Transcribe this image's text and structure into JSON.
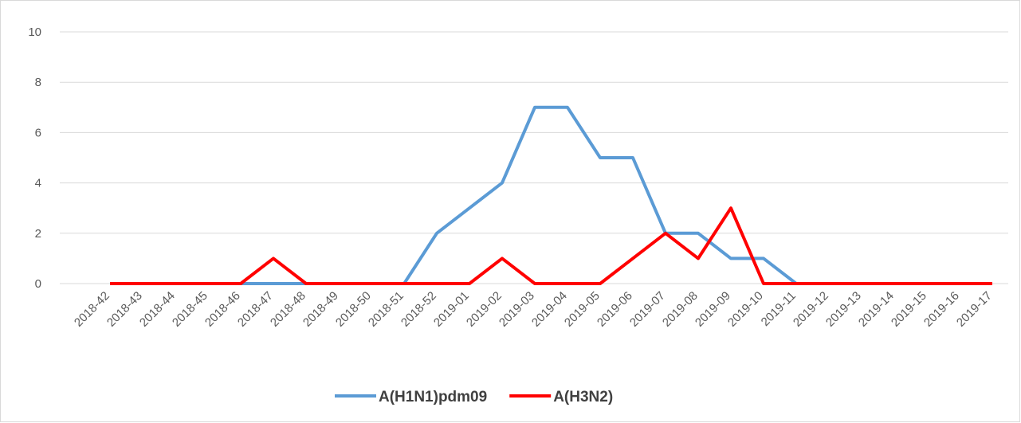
{
  "chart_data": {
    "type": "line",
    "categories": [
      "2018-42",
      "2018-43",
      "2018-44",
      "2018-45",
      "2018-46",
      "2018-47",
      "2018-48",
      "2018-49",
      "2018-50",
      "2018-51",
      "2018-52",
      "2019-01",
      "2019-02",
      "2019-03",
      "2019-04",
      "2019-05",
      "2019-06",
      "2019-07",
      "2019-08",
      "2019-09",
      "2019-10",
      "2019-11",
      "2019-12",
      "2019-13",
      "2019-14",
      "2019-15",
      "2019-16",
      "2019-17"
    ],
    "series": [
      {
        "name": "A(H1N1)pdm09",
        "color": "#5b9bd5",
        "values": [
          0,
          0,
          0,
          0,
          0,
          0,
          0,
          0,
          0,
          0,
          2,
          3,
          4,
          7,
          7,
          5,
          5,
          2,
          2,
          1,
          1,
          0,
          0,
          0,
          0,
          0,
          0,
          0
        ]
      },
      {
        "name": "A(H3N2)",
        "color": "#ff0000",
        "values": [
          0,
          0,
          0,
          0,
          0,
          1,
          0,
          0,
          0,
          0,
          0,
          0,
          1,
          0,
          0,
          0,
          1,
          2,
          1,
          3,
          0,
          0,
          0,
          0,
          0,
          0,
          0,
          0
        ]
      }
    ],
    "ylim": [
      0,
      10
    ],
    "yticks": [
      0,
      2,
      4,
      6,
      8,
      10
    ],
    "grid": true,
    "legend": "bottom"
  }
}
